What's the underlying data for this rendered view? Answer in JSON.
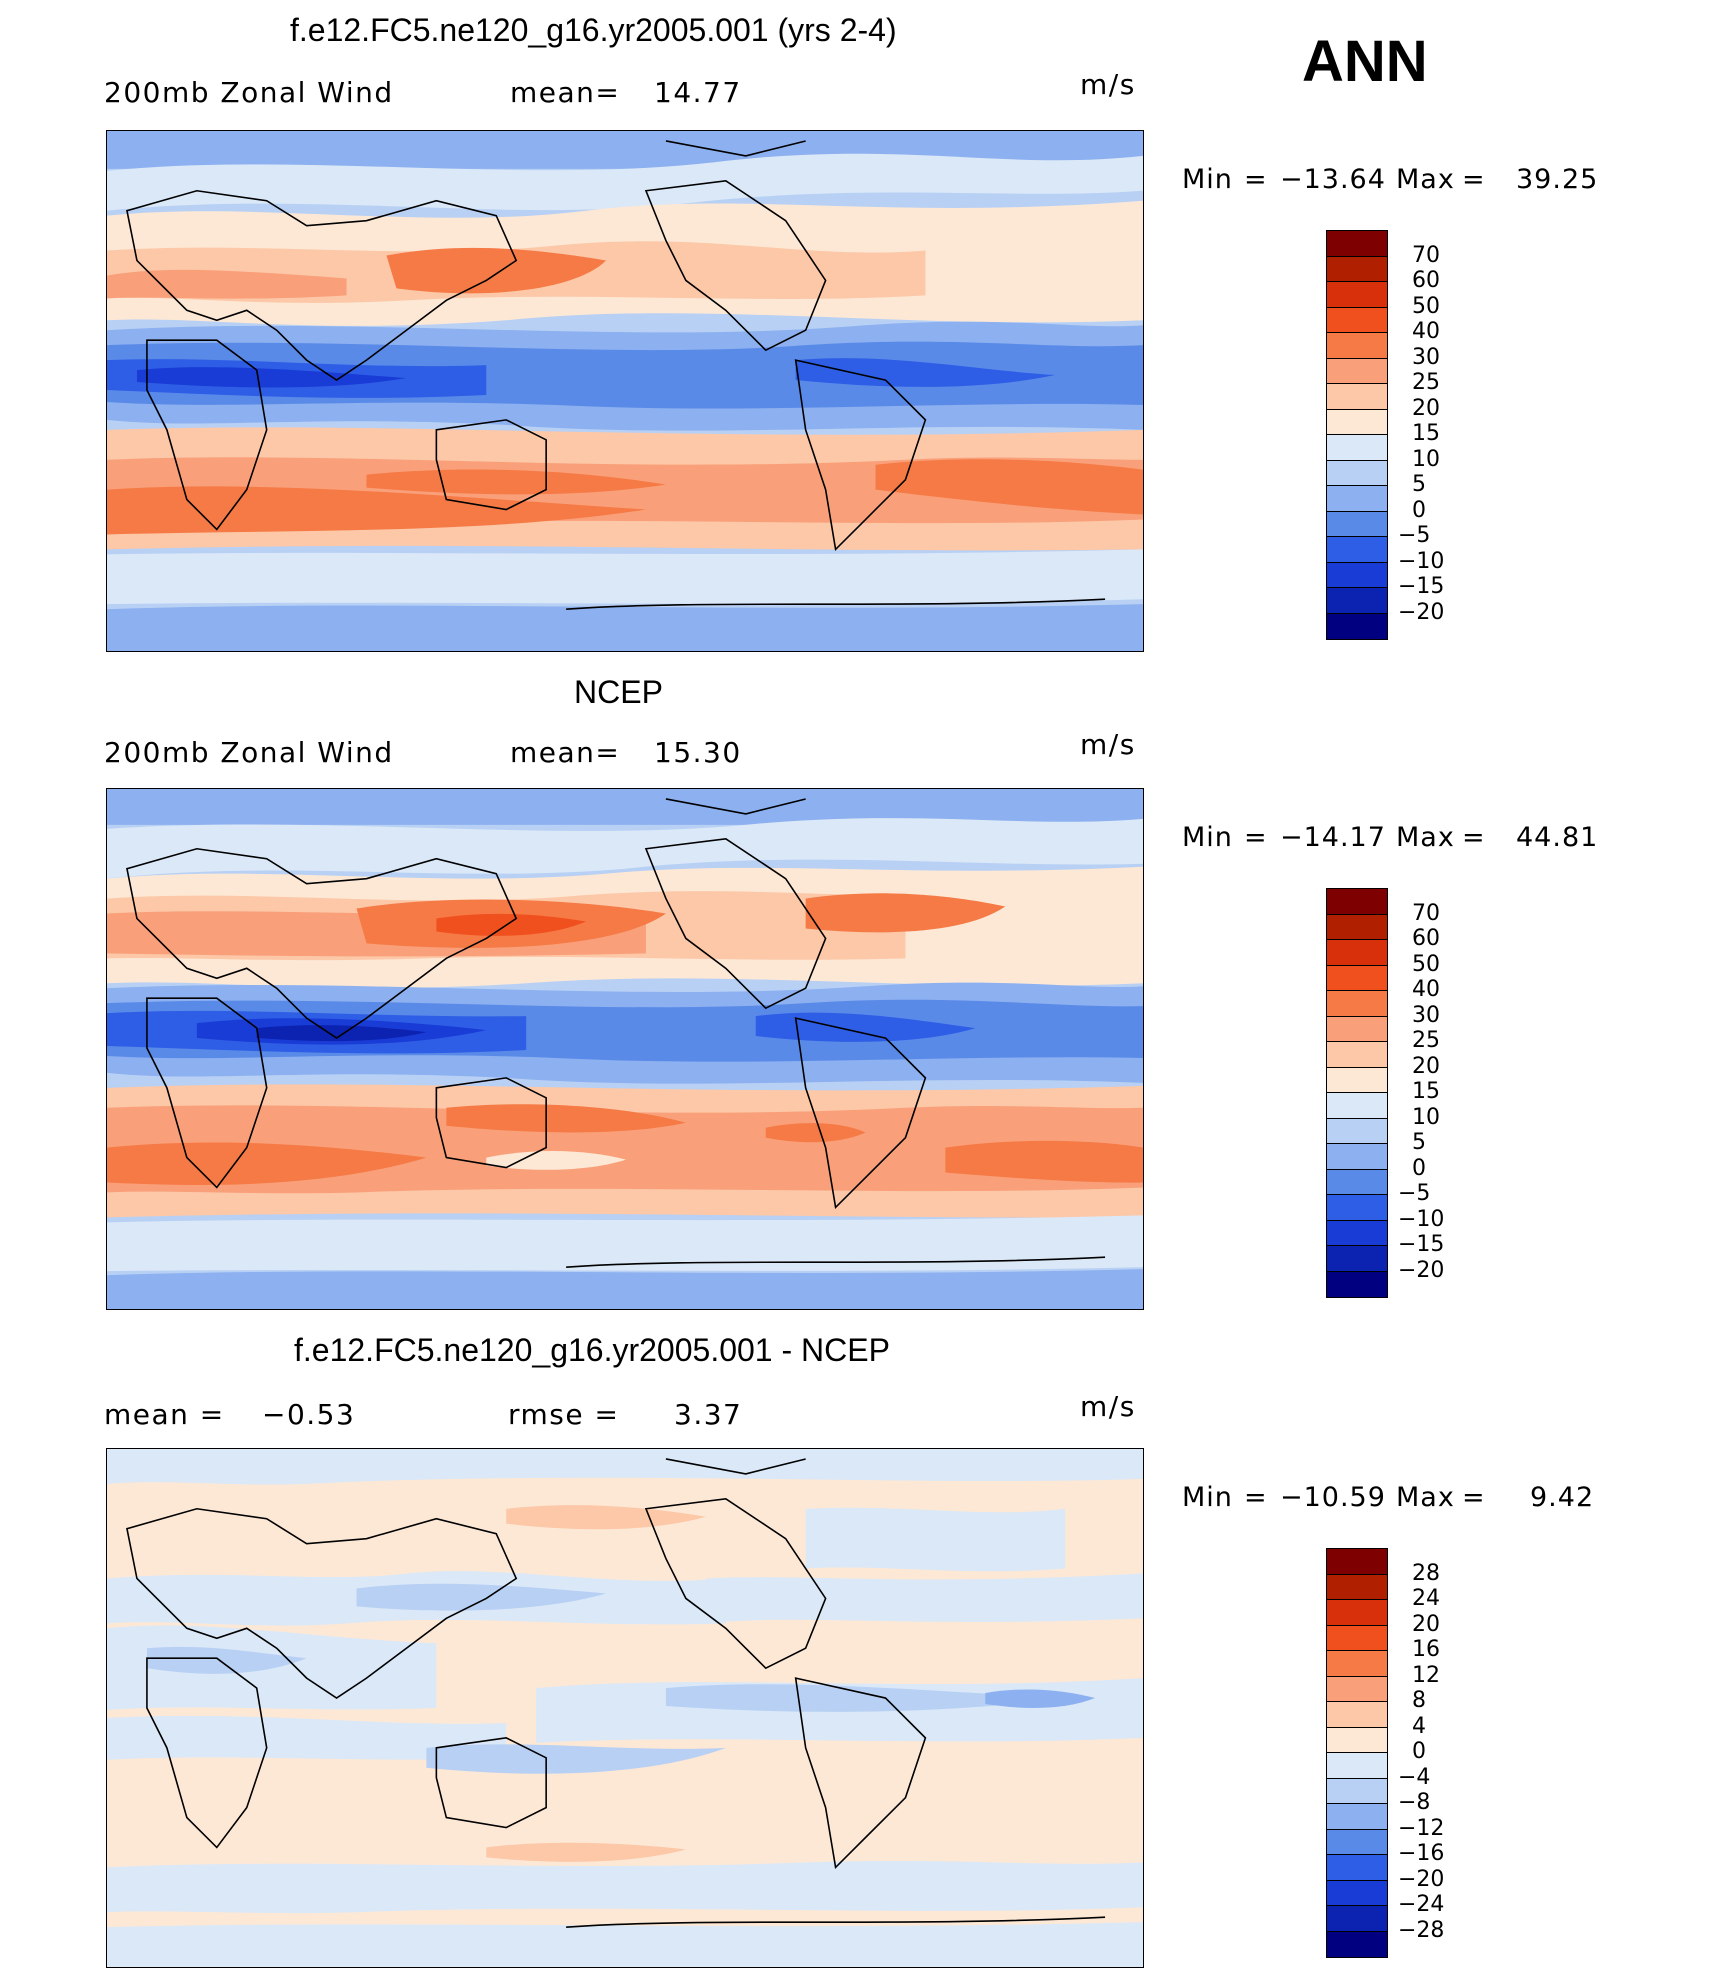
{
  "season": "ANN",
  "panels": [
    {
      "title": "f.e12.FC5.ne120_g16.yr2005.001 (yrs 2-4)",
      "left_label": "200mb Zonal Wind",
      "stat1_label": "mean=",
      "stat1_value": "14.77",
      "stat2_label": "",
      "stat2_value": "",
      "units": "m/s",
      "min_label": "Min",
      "min_value": "−13.64",
      "max_label": "Max",
      "max_value": "39.25",
      "colorbar_ticks": [
        "70",
        "60",
        "50",
        "40",
        "30",
        "25",
        "20",
        "15",
        "10",
        "5",
        "0",
        "−5",
        "−10",
        "−15",
        "−20"
      ]
    },
    {
      "title": "NCEP",
      "left_label": "200mb Zonal Wind",
      "stat1_label": "mean=",
      "stat1_value": "15.30",
      "stat2_label": "",
      "stat2_value": "",
      "units": "m/s",
      "min_label": "Min",
      "min_value": "−14.17",
      "max_label": "Max",
      "max_value": "44.81",
      "colorbar_ticks": [
        "70",
        "60",
        "50",
        "40",
        "30",
        "25",
        "20",
        "15",
        "10",
        "5",
        "0",
        "−5",
        "−10",
        "−15",
        "−20"
      ]
    },
    {
      "title": "f.e12.FC5.ne120_g16.yr2005.001 - NCEP",
      "left_label": "mean =",
      "stat1_label": "",
      "stat1_value": "−0.53",
      "stat2_label": "rmse =",
      "stat2_value": "3.37",
      "units": "m/s",
      "min_label": "Min",
      "min_value": "−10.59",
      "max_label": "Max",
      "max_value": "9.42",
      "colorbar_ticks": [
        "28",
        "24",
        "20",
        "16",
        "12",
        "8",
        "4",
        "0",
        "−4",
        "−8",
        "−12",
        "−16",
        "−20",
        "−24",
        "−28"
      ]
    }
  ],
  "colors": {
    "wind_scale": [
      "#7f0000",
      "#b02000",
      "#d8300a",
      "#f0501e",
      "#f57a45",
      "#f9a07a",
      "#fcc8a8",
      "#fde8d6",
      "#dae8f8",
      "#b8d0f4",
      "#8cb0f0",
      "#5a8ae8",
      "#2f5ee6",
      "#1a3cd6",
      "#0c22b0",
      "#000080"
    ],
    "diff_scale": [
      "#7f0000",
      "#b02000",
      "#d8300a",
      "#f0501e",
      "#f57a45",
      "#f9a07a",
      "#fcc8a8",
      "#fde8d6",
      "#dae8f8",
      "#b8d0f4",
      "#8cb0f0",
      "#5a8ae8",
      "#2f5ee6",
      "#1a3cd6",
      "#0c22b0",
      "#000080"
    ],
    "coast": "#000000"
  }
}
